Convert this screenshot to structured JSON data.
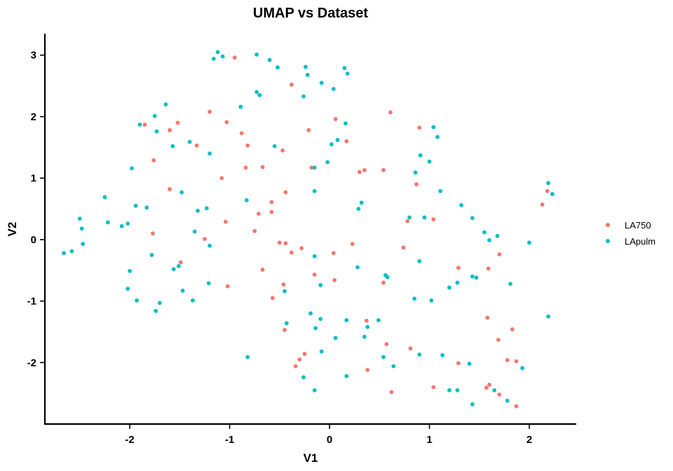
{
  "chart_data": {
    "type": "scatter",
    "title": "UMAP vs Dataset",
    "xlabel": "V1",
    "ylabel": "V2",
    "xlim": [
      -2.85,
      2.47
    ],
    "ylim": [
      -3.0,
      3.35
    ],
    "xticks": [
      -2,
      -1,
      0,
      1,
      2
    ],
    "yticks": [
      -2,
      -1,
      0,
      1,
      2,
      3
    ],
    "xtick_labels": [
      "-2",
      "-1",
      "0",
      "1",
      "2"
    ],
    "ytick_labels": [
      "-2",
      "-1",
      "0",
      "1",
      "2",
      "3"
    ],
    "grid": false,
    "legend_position": "right",
    "series": [
      {
        "name": "LA750",
        "color": "#F8766D",
        "points": [
          [
            -0.95,
            2.96
          ],
          [
            -0.38,
            2.52
          ],
          [
            -1.2,
            2.08
          ],
          [
            0.06,
            1.96
          ],
          [
            0.61,
            2.07
          ],
          [
            -1.03,
            1.91
          ],
          [
            -1.52,
            1.9
          ],
          [
            -1.85,
            1.87
          ],
          [
            -1.6,
            1.78
          ],
          [
            -0.88,
            1.73
          ],
          [
            -0.21,
            1.78
          ],
          [
            0.9,
            1.82
          ],
          [
            -1.33,
            1.53
          ],
          [
            -0.82,
            1.53
          ],
          [
            -0.47,
            1.45
          ],
          [
            0.17,
            1.6
          ],
          [
            -1.76,
            1.29
          ],
          [
            -0.84,
            1.17
          ],
          [
            -0.67,
            1.18
          ],
          [
            -0.18,
            1.17
          ],
          [
            0.3,
            1.1
          ],
          [
            0.35,
            1.13
          ],
          [
            0.54,
            1.13
          ],
          [
            -1.08,
            1.0
          ],
          [
            0.87,
            0.9
          ],
          [
            -1.6,
            0.82
          ],
          [
            -0.44,
            0.77
          ],
          [
            2.18,
            0.79
          ],
          [
            2.13,
            0.57
          ],
          [
            -0.58,
            0.61
          ],
          [
            -0.58,
            0.45
          ],
          [
            -0.71,
            0.42
          ],
          [
            0.78,
            0.3
          ],
          [
            1.04,
            0.33
          ],
          [
            -1.04,
            0.29
          ],
          [
            -0.75,
            0.14
          ],
          [
            -1.77,
            0.1
          ],
          [
            -1.25,
            0.01
          ],
          [
            -0.5,
            -0.05
          ],
          [
            -0.44,
            -0.06
          ],
          [
            -0.28,
            -0.14
          ],
          [
            -0.38,
            -0.21
          ],
          [
            0.04,
            -0.22
          ],
          [
            0.23,
            -0.07
          ],
          [
            0.74,
            -0.13
          ],
          [
            1.7,
            -0.24
          ],
          [
            -0.67,
            -0.49
          ],
          [
            -1.49,
            -0.37
          ],
          [
            1.59,
            -0.47
          ],
          [
            1.29,
            -0.46
          ],
          [
            -0.15,
            -0.57
          ],
          [
            0.05,
            -0.66
          ],
          [
            -0.46,
            -0.73
          ],
          [
            0.54,
            -0.7
          ],
          [
            -1.02,
            -0.76
          ],
          [
            -0.57,
            -0.95
          ],
          [
            0.37,
            -1.32
          ],
          [
            1.58,
            -1.27
          ],
          [
            1.83,
            -1.46
          ],
          [
            -0.45,
            -1.47
          ],
          [
            1.69,
            -1.63
          ],
          [
            0.57,
            -1.7
          ],
          [
            -0.25,
            -1.86
          ],
          [
            0.81,
            -1.77
          ],
          [
            -0.3,
            -1.95
          ],
          [
            -0.34,
            -2.06
          ],
          [
            1.29,
            -2.01
          ],
          [
            1.78,
            -1.96
          ],
          [
            1.87,
            -1.98
          ],
          [
            0.38,
            -2.12
          ],
          [
            1.04,
            -2.4
          ],
          [
            1.6,
            -2.36
          ],
          [
            1.57,
            -2.41
          ],
          [
            0.62,
            -2.48
          ],
          [
            1.7,
            -2.52
          ],
          [
            1.87,
            -2.71
          ]
        ]
      },
      {
        "name": "LApulm",
        "color": "#00BFC4",
        "points": [
          [
            -1.12,
            3.05
          ],
          [
            -1.07,
            2.98
          ],
          [
            -1.16,
            2.94
          ],
          [
            -0.73,
            3.01
          ],
          [
            -0.6,
            2.92
          ],
          [
            -0.52,
            2.8
          ],
          [
            -0.24,
            2.81
          ],
          [
            -0.22,
            2.68
          ],
          [
            0.15,
            2.79
          ],
          [
            0.18,
            2.7
          ],
          [
            -0.08,
            2.55
          ],
          [
            0.04,
            2.45
          ],
          [
            -0.73,
            2.4
          ],
          [
            -0.7,
            2.35
          ],
          [
            -0.26,
            2.33
          ],
          [
            -0.89,
            2.16
          ],
          [
            -1.64,
            2.2
          ],
          [
            -1.75,
            2.01
          ],
          [
            -1.9,
            1.87
          ],
          [
            -1.73,
            1.76
          ],
          [
            0.16,
            1.89
          ],
          [
            1.04,
            1.83
          ],
          [
            1.08,
            1.67
          ],
          [
            -1.57,
            1.52
          ],
          [
            -1.4,
            1.59
          ],
          [
            0.08,
            1.62
          ],
          [
            0.02,
            1.55
          ],
          [
            -0.55,
            1.52
          ],
          [
            -1.2,
            1.4
          ],
          [
            0.91,
            1.37
          ],
          [
            1.0,
            1.27
          ],
          [
            -0.02,
            1.26
          ],
          [
            -0.15,
            1.17
          ],
          [
            0.86,
            1.09
          ],
          [
            -1.98,
            1.16
          ],
          [
            -2.25,
            0.69
          ],
          [
            -1.48,
            0.77
          ],
          [
            -0.15,
            0.79
          ],
          [
            1.11,
            0.79
          ],
          [
            2.19,
            0.92
          ],
          [
            2.23,
            0.74
          ],
          [
            -0.83,
            0.64
          ],
          [
            -1.94,
            0.55
          ],
          [
            -1.83,
            0.52
          ],
          [
            -1.23,
            0.51
          ],
          [
            -1.32,
            0.47
          ],
          [
            0.32,
            0.6
          ],
          [
            0.29,
            0.5
          ],
          [
            1.32,
            0.56
          ],
          [
            0.8,
            0.36
          ],
          [
            0.95,
            0.36
          ],
          [
            1.43,
            0.35
          ],
          [
            -2.5,
            0.34
          ],
          [
            -2.48,
            0.18
          ],
          [
            -2.22,
            0.28
          ],
          [
            -2.02,
            0.26
          ],
          [
            -2.08,
            0.22
          ],
          [
            -1.35,
            0.13
          ],
          [
            1.55,
            0.12
          ],
          [
            1.68,
            0.06
          ],
          [
            1.6,
            -0.01
          ],
          [
            2.0,
            -0.05
          ],
          [
            -2.47,
            -0.07
          ],
          [
            -2.58,
            -0.19
          ],
          [
            -2.66,
            -0.22
          ],
          [
            -1.2,
            -0.1
          ],
          [
            -1.78,
            -0.25
          ],
          [
            -0.15,
            -0.27
          ],
          [
            -1.51,
            -0.43
          ],
          [
            -1.56,
            -0.48
          ],
          [
            0.28,
            -0.45
          ],
          [
            0.9,
            -0.35
          ],
          [
            -2.0,
            -0.51
          ],
          [
            1.43,
            -0.6
          ],
          [
            1.47,
            -0.62
          ],
          [
            0.56,
            -0.58
          ],
          [
            0.58,
            -0.61
          ],
          [
            1.28,
            -0.7
          ],
          [
            -2.02,
            -0.8
          ],
          [
            -1.93,
            -0.99
          ],
          [
            -1.21,
            -0.71
          ],
          [
            -1.47,
            -0.83
          ],
          [
            -0.45,
            -0.84
          ],
          [
            -0.09,
            -0.74
          ],
          [
            1.2,
            -0.78
          ],
          [
            1.81,
            -0.72
          ],
          [
            0.85,
            -0.96
          ],
          [
            1.02,
            -0.99
          ],
          [
            -1.37,
            -0.99
          ],
          [
            -1.7,
            -1.03
          ],
          [
            -1.74,
            -1.16
          ],
          [
            -0.19,
            -1.2
          ],
          [
            -0.09,
            -1.29
          ],
          [
            0.17,
            -1.31
          ],
          [
            0.38,
            -1.42
          ],
          [
            0.49,
            -1.31
          ],
          [
            -0.43,
            -1.36
          ],
          [
            -0.14,
            -1.44
          ],
          [
            2.19,
            -1.25
          ],
          [
            0.35,
            -1.58
          ],
          [
            0.06,
            -1.6
          ],
          [
            -0.08,
            -1.82
          ],
          [
            -0.82,
            -1.91
          ],
          [
            0.54,
            -1.91
          ],
          [
            0.9,
            -1.87
          ],
          [
            1.13,
            -1.88
          ],
          [
            1.4,
            -2.02
          ],
          [
            0.64,
            -2.06
          ],
          [
            -0.26,
            -2.24
          ],
          [
            0.17,
            -2.22
          ],
          [
            1.93,
            -2.09
          ],
          [
            -0.15,
            -2.45
          ],
          [
            1.2,
            -2.45
          ],
          [
            1.28,
            -2.45
          ],
          [
            1.65,
            -2.45
          ],
          [
            1.78,
            -2.62
          ],
          [
            1.43,
            -2.68
          ]
        ]
      }
    ]
  }
}
